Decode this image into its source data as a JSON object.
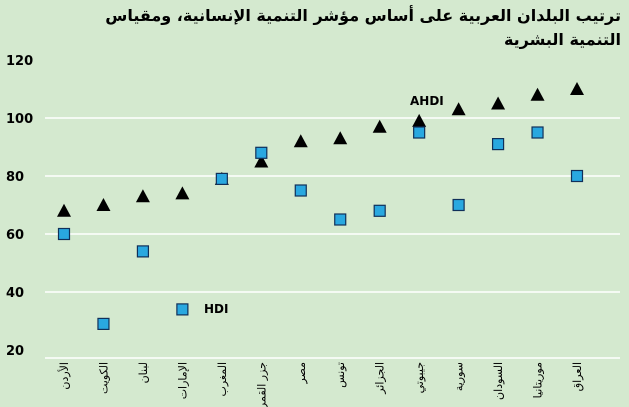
{
  "chart_data": {
    "type": "scatter",
    "title": "ترتيب البلدان العربية على أساس مؤشر التنمية الإنسانية، ومقياس التنمية البشرية",
    "categories": [
      "الأردن",
      "الكويت",
      "لبنان",
      "الإمارات",
      "المغرب",
      "جزر القمر",
      "مصر",
      "تونس",
      "الجزائر",
      "جيبوتي",
      "سورية",
      "السودان",
      "موريتانيا",
      "العراق"
    ],
    "series": [
      {
        "name": "AHDI",
        "color": "#000000",
        "marker": "triangle",
        "values": [
          68,
          70,
          73,
          74,
          79,
          85,
          92,
          93,
          97,
          99,
          103,
          105,
          108,
          110
        ]
      },
      {
        "name": "HDI",
        "color": "#29a8e0",
        "marker": "square",
        "values": [
          60,
          29,
          54,
          34,
          79,
          88,
          75,
          65,
          68,
          95,
          70,
          91,
          95,
          80
        ]
      }
    ],
    "ylim": [
      20,
      120
    ],
    "yticks": [
      20,
      40,
      60,
      80,
      100,
      120
    ],
    "grid": true
  }
}
